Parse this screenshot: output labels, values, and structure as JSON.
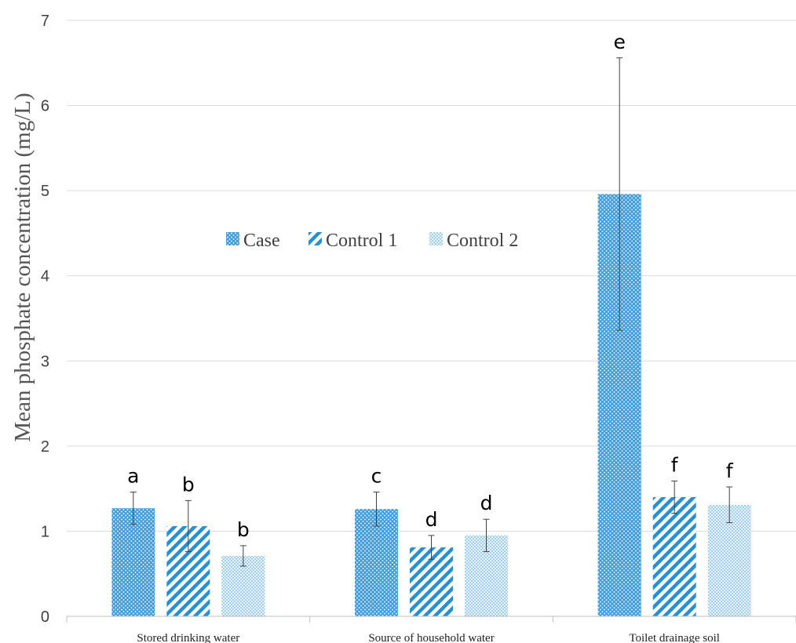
{
  "chart_data": {
    "type": "bar",
    "title": "",
    "xlabel": "",
    "ylabel": "Mean phosphate concentration (mg/L)",
    "ylim": [
      0,
      7
    ],
    "yticks": [
      0,
      1,
      2,
      3,
      4,
      5,
      6,
      7
    ],
    "grid": true,
    "legend_position": "center-left",
    "categories": [
      "Stored drinking water",
      "Source of household water",
      "Toilet drainage soil"
    ],
    "series": [
      {
        "name": "Case",
        "pattern": "crosshatch",
        "color": "#3d9ad6",
        "values": [
          1.27,
          1.26,
          4.96
        ],
        "errors": [
          0.19,
          0.2,
          1.6
        ],
        "labels": [
          "a",
          "c",
          "e"
        ]
      },
      {
        "name": "Control 1",
        "pattern": "diagonal",
        "color": "#2690d4",
        "values": [
          1.06,
          0.81,
          1.4
        ],
        "errors": [
          0.3,
          0.14,
          0.19
        ],
        "labels": [
          "b",
          "d",
          "f"
        ]
      },
      {
        "name": "Control 2",
        "pattern": "dots",
        "color": "#7fbde6",
        "values": [
          0.71,
          0.95,
          1.31
        ],
        "errors": [
          0.12,
          0.19,
          0.21
        ],
        "labels": [
          "b",
          "d",
          "f"
        ]
      }
    ]
  }
}
